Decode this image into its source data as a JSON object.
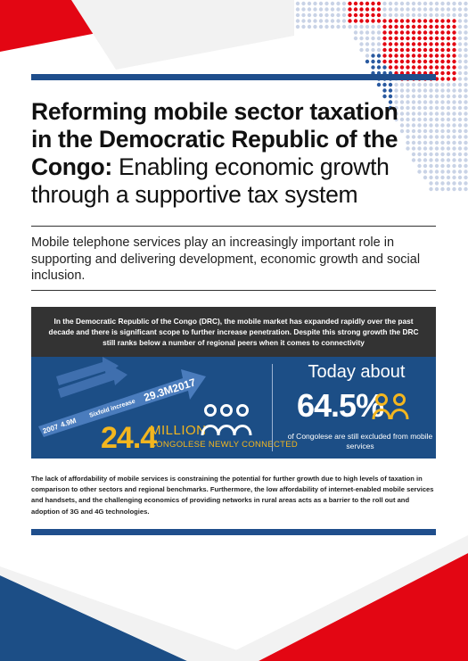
{
  "title": {
    "bold_text": "Reforming mobile sector taxation in the Democratic Republic of the Congo:",
    "regular_text": "Enabling economic growth through a supportive tax system"
  },
  "subtitle": "Mobile telephone services play an increasingly important role in supporting and delivering development, economic growth and social inclusion.",
  "highlight": "In the Democratic Republic of the Congo (DRC), the mobile market has expanded rapidly over the past decade and there is significant scope to further increase penetration. Despite this strong growth the DRC still ranks below a number of regional peers when it comes to connectivity",
  "growth": {
    "start_year": "2007",
    "start_value": "4.9M",
    "multiplier": "Sixfold increase",
    "end_value": "29.3M",
    "end_year": "2017",
    "new_connections_number": "24.4",
    "new_connections_unit": "MILLION",
    "new_connections_label": "CONGOLESE NEWLY CONNECTED"
  },
  "excluded": {
    "prefix": "Today about",
    "percent": "64.5%",
    "label": "of Congolese are still excluded from mobile services"
  },
  "body": "The lack of affordability of mobile services is constraining the potential for further growth due to high levels of taxation in comparison to other sectors and regional benchmarks. Furthermore, the low affordability of internet-enabled mobile services and handsets, and the challenging economics of providing networks in rural areas acts as a barrier to the roll out and adoption of 3G and 4G technologies.",
  "colors": {
    "red": "#e30613",
    "blue": "#1c4e86",
    "dark": "#333333",
    "yellow": "#f3b61f"
  },
  "icons": [
    "dotted-map-graphic",
    "people-group-icon",
    "person-pair-icon",
    "growth-arrow-icon"
  ]
}
